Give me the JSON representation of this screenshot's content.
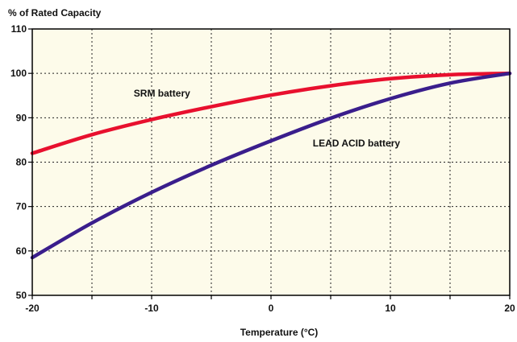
{
  "chart_data": {
    "type": "line",
    "title": "",
    "ylabel": "% of Rated Capacity",
    "xlabel": "Temperature (°C)",
    "xlim": [
      -20,
      20
    ],
    "ylim": [
      50,
      110
    ],
    "x_ticks": [
      -20,
      -15,
      -10,
      -5,
      0,
      5,
      10,
      15,
      20
    ],
    "x_tick_labels": [
      "-20",
      "",
      "-10",
      "",
      "0",
      "",
      "10",
      "",
      "20"
    ],
    "y_ticks": [
      50,
      60,
      70,
      80,
      90,
      100,
      110
    ],
    "y_tick_labels": [
      "50",
      "60",
      "70",
      "80",
      "90",
      "100",
      "110"
    ],
    "grid": true,
    "background_color": "#fdfbea",
    "series": [
      {
        "name": "SRM battery",
        "color": "#e8102e",
        "x": [
          -20,
          -15,
          -10,
          -5,
          0,
          5,
          10,
          15,
          20
        ],
        "values": [
          82,
          86.2,
          89.6,
          92.5,
          95.1,
          97.2,
          98.8,
          99.7,
          100
        ]
      },
      {
        "name": "LEAD ACID battery",
        "color": "#3a1e8c",
        "x": [
          -20,
          -15,
          -10,
          -5,
          0,
          5,
          10,
          15,
          20
        ],
        "values": [
          58.5,
          66.3,
          73.2,
          79.3,
          84.8,
          89.9,
          94.3,
          97.8,
          100
        ]
      }
    ],
    "label_positions_data": [
      {
        "series": 0,
        "x": -11.5,
        "y": 94.8
      },
      {
        "series": 1,
        "x": 3.5,
        "y": 83.5
      }
    ]
  }
}
